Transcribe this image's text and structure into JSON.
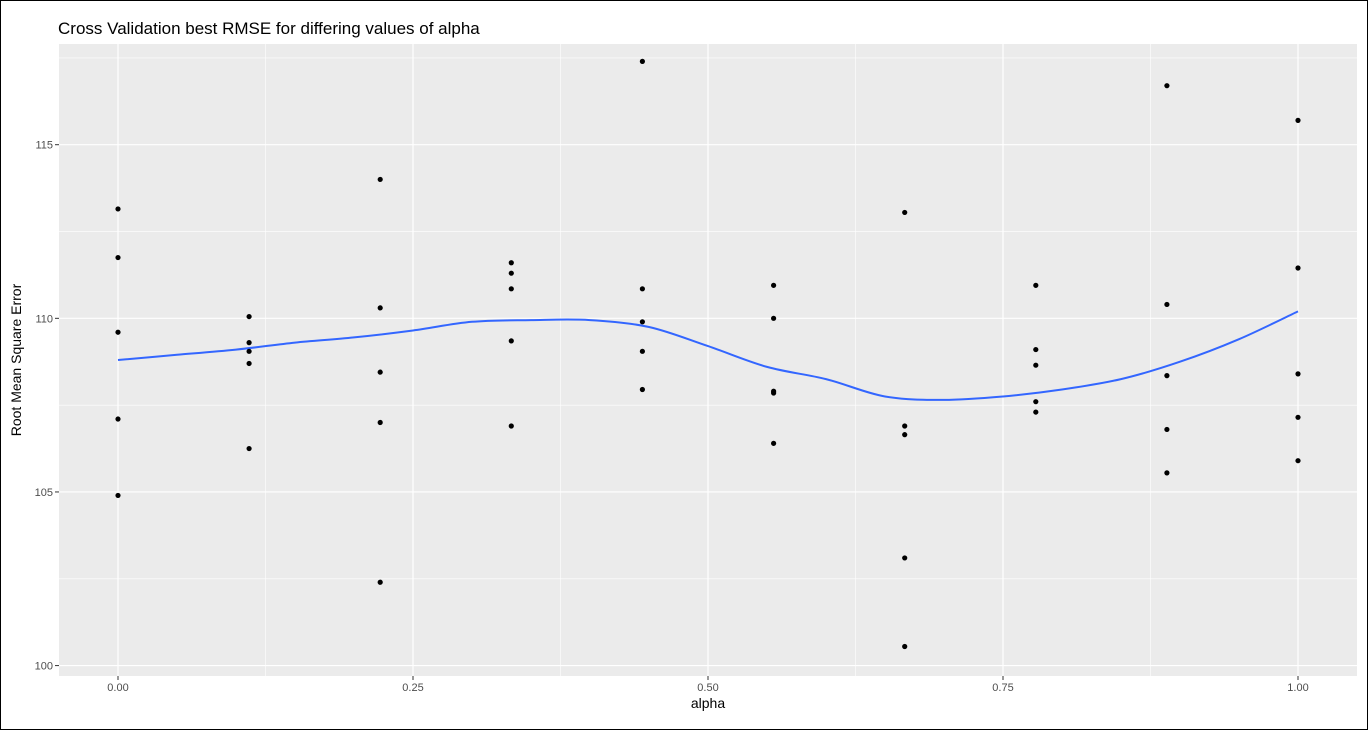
{
  "chart_data": {
    "type": "scatter",
    "title": "Cross Validation best RMSE for differing values of alpha",
    "xlabel": "alpha",
    "ylabel": "Root Mean Square Error",
    "xlim": [
      -0.05,
      1.05
    ],
    "ylim": [
      99.7,
      117.9
    ],
    "x_ticks": [
      0.0,
      0.25,
      0.5,
      0.75,
      1.0
    ],
    "x_tick_labels": [
      "0.00",
      "0.25",
      "0.50",
      "0.75",
      "1.00"
    ],
    "y_ticks": [
      100,
      105,
      110,
      115
    ],
    "y_tick_labels": [
      "100",
      "105",
      "110",
      "115"
    ],
    "grid": true,
    "panel_background": "#ebebeb",
    "grid_color": "#ffffff",
    "point_color": "#000000",
    "smooth_color": "#3366ff",
    "points": [
      {
        "x": 0.0,
        "y": 113.15
      },
      {
        "x": 0.0,
        "y": 111.75
      },
      {
        "x": 0.0,
        "y": 109.6
      },
      {
        "x": 0.0,
        "y": 107.1
      },
      {
        "x": 0.0,
        "y": 104.9
      },
      {
        "x": 0.1111,
        "y": 110.05
      },
      {
        "x": 0.1111,
        "y": 109.3
      },
      {
        "x": 0.1111,
        "y": 109.05
      },
      {
        "x": 0.1111,
        "y": 108.7
      },
      {
        "x": 0.1111,
        "y": 106.25
      },
      {
        "x": 0.2222,
        "y": 114.0
      },
      {
        "x": 0.2222,
        "y": 110.3
      },
      {
        "x": 0.2222,
        "y": 108.45
      },
      {
        "x": 0.2222,
        "y": 107.0
      },
      {
        "x": 0.2222,
        "y": 102.4
      },
      {
        "x": 0.3333,
        "y": 111.6
      },
      {
        "x": 0.3333,
        "y": 111.3
      },
      {
        "x": 0.3333,
        "y": 110.85
      },
      {
        "x": 0.3333,
        "y": 109.35
      },
      {
        "x": 0.3333,
        "y": 106.9
      },
      {
        "x": 0.4444,
        "y": 117.4
      },
      {
        "x": 0.4444,
        "y": 110.85
      },
      {
        "x": 0.4444,
        "y": 109.9
      },
      {
        "x": 0.4444,
        "y": 109.05
      },
      {
        "x": 0.4444,
        "y": 107.95
      },
      {
        "x": 0.5556,
        "y": 110.95
      },
      {
        "x": 0.5556,
        "y": 110.0
      },
      {
        "x": 0.5556,
        "y": 107.9
      },
      {
        "x": 0.5556,
        "y": 107.85
      },
      {
        "x": 0.5556,
        "y": 106.4
      },
      {
        "x": 0.6667,
        "y": 113.05
      },
      {
        "x": 0.6667,
        "y": 106.9
      },
      {
        "x": 0.6667,
        "y": 106.65
      },
      {
        "x": 0.6667,
        "y": 103.1
      },
      {
        "x": 0.6667,
        "y": 100.55
      },
      {
        "x": 0.7778,
        "y": 110.95
      },
      {
        "x": 0.7778,
        "y": 109.1
      },
      {
        "x": 0.7778,
        "y": 108.65
      },
      {
        "x": 0.7778,
        "y": 107.6
      },
      {
        "x": 0.7778,
        "y": 107.3
      },
      {
        "x": 0.8889,
        "y": 116.7
      },
      {
        "x": 0.8889,
        "y": 110.4
      },
      {
        "x": 0.8889,
        "y": 108.35
      },
      {
        "x": 0.8889,
        "y": 106.8
      },
      {
        "x": 0.8889,
        "y": 105.55
      },
      {
        "x": 1.0,
        "y": 115.7
      },
      {
        "x": 1.0,
        "y": 111.45
      },
      {
        "x": 1.0,
        "y": 108.4
      },
      {
        "x": 1.0,
        "y": 107.15
      },
      {
        "x": 1.0,
        "y": 105.9
      }
    ],
    "smooth_line": {
      "x": [
        0.0,
        0.05,
        0.1,
        0.15,
        0.2,
        0.25,
        0.3,
        0.35,
        0.4,
        0.45,
        0.5,
        0.55,
        0.6,
        0.65,
        0.7,
        0.75,
        0.8,
        0.85,
        0.9,
        0.95,
        1.0
      ],
      "y": [
        108.8,
        108.95,
        109.1,
        109.3,
        109.45,
        109.65,
        109.9,
        109.95,
        109.95,
        109.75,
        109.2,
        108.6,
        108.25,
        107.75,
        107.65,
        107.75,
        107.95,
        108.25,
        108.75,
        109.4,
        110.2
      ]
    }
  }
}
